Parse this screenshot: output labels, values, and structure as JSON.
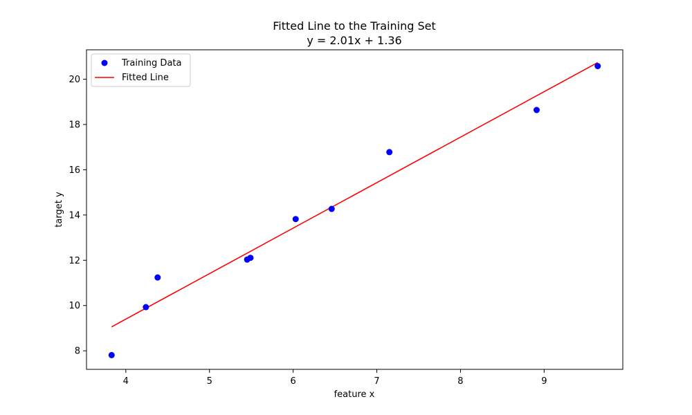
{
  "chart_data": {
    "type": "scatter",
    "title": "Fitted Line to the Training Set",
    "subtitle": "y = 2.01x + 1.36",
    "xlabel": "feature x",
    "ylabel": "target y",
    "xlim": [
      3.53,
      9.94
    ],
    "ylim": [
      7.18,
      21.3
    ],
    "x_ticks": [
      4,
      5,
      6,
      7,
      8,
      9
    ],
    "y_ticks": [
      8,
      10,
      12,
      14,
      16,
      18,
      20
    ],
    "grid": false,
    "legend": {
      "position": "top-left",
      "entries": [
        "Training Data",
        "Fitted Line"
      ]
    },
    "series": [
      {
        "name": "Training Data",
        "type": "scatter",
        "color": "#0000ff",
        "points": [
          {
            "x": 3.83,
            "y": 7.81
          },
          {
            "x": 4.24,
            "y": 9.93
          },
          {
            "x": 4.38,
            "y": 11.24
          },
          {
            "x": 5.45,
            "y": 12.03
          },
          {
            "x": 5.49,
            "y": 12.11
          },
          {
            "x": 6.03,
            "y": 13.82
          },
          {
            "x": 6.46,
            "y": 14.27
          },
          {
            "x": 7.15,
            "y": 16.78
          },
          {
            "x": 8.91,
            "y": 18.64
          },
          {
            "x": 9.64,
            "y": 20.58
          }
        ]
      },
      {
        "name": "Fitted Line",
        "type": "line",
        "color": "#ff0000",
        "slope": 2.01,
        "intercept": 1.36,
        "x_range": [
          3.83,
          9.64
        ]
      }
    ]
  }
}
